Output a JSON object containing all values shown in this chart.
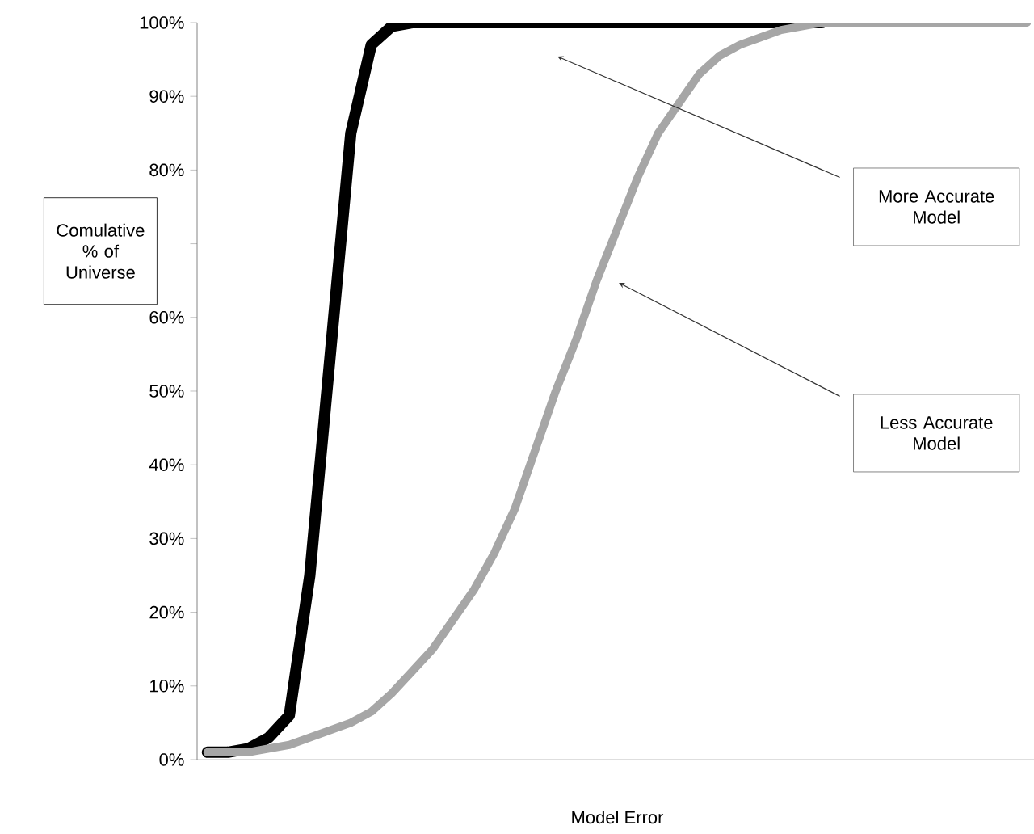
{
  "chart_data": {
    "type": "line",
    "xlabel": "Model Error",
    "ylabel": "Comulative % of Universe",
    "categories": [
      null,
      null,
      null,
      null,
      null,
      null,
      null,
      null,
      null,
      null,
      null,
      null,
      null,
      null,
      null,
      null,
      null,
      null,
      null,
      null,
      null,
      null,
      null,
      null,
      null,
      null,
      null,
      null,
      null,
      null,
      null,
      null,
      null,
      null,
      null,
      null,
      null,
      null,
      null,
      null,
      null
    ],
    "series": [
      {
        "color": "#000000",
        "values": [
          1,
          1,
          1.5,
          3,
          6,
          25,
          55,
          85,
          97,
          99.5,
          100,
          100,
          100,
          100,
          100,
          100,
          100,
          100,
          100,
          100,
          100,
          100,
          100,
          100,
          100,
          100,
          100,
          100,
          100,
          100,
          100,
          null,
          null,
          null,
          null,
          null,
          null,
          null,
          null,
          null,
          null
        ]
      },
      {
        "color": "#a6a6a6",
        "values": [
          1,
          1,
          1,
          1.5,
          2,
          3,
          4,
          5,
          6.5,
          9,
          12,
          15,
          19,
          23,
          28,
          34,
          42,
          50,
          57,
          65,
          72,
          79,
          85,
          89,
          93,
          95.5,
          97,
          98,
          99,
          99.5,
          100,
          100,
          100,
          100,
          100,
          100,
          100,
          100,
          100,
          100,
          100
        ]
      }
    ],
    "ylim": [
      0,
      100
    ],
    "yticks": [
      {
        "value": 0,
        "label": "0%"
      },
      {
        "value": 10,
        "label": "10%"
      },
      {
        "value": 20,
        "label": "20%"
      },
      {
        "value": 30,
        "label": "30%"
      },
      {
        "value": 40,
        "label": "40%"
      },
      {
        "value": 50,
        "label": "50%"
      },
      {
        "value": 60,
        "label": "60%"
      },
      {
        "value": 70,
        "label": null
      },
      {
        "value": 80,
        "label": "80%"
      },
      {
        "value": 90,
        "label": "90%"
      },
      {
        "value": 100,
        "label": "100%"
      }
    ],
    "tick_labels": "y",
    "marker": "none",
    "line_style": "solid",
    "annotations": [
      "More Accurate Model",
      "Less Accurate Model"
    ]
  }
}
